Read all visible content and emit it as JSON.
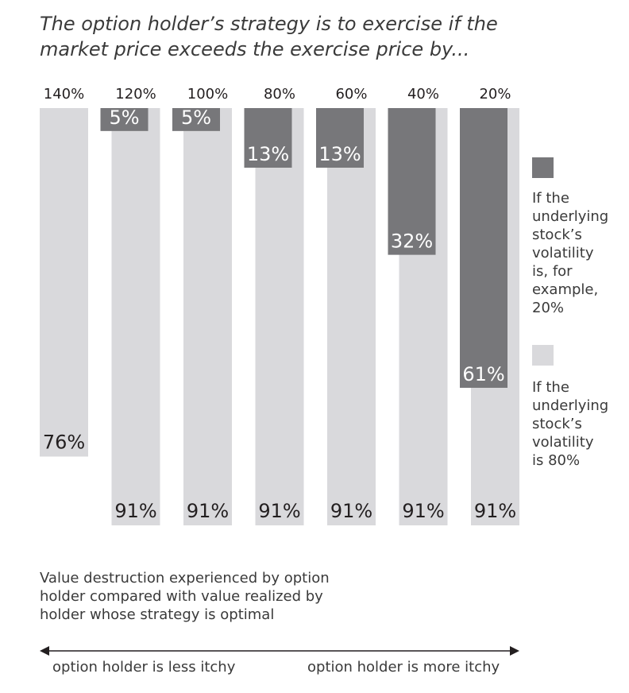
{
  "title": {
    "line1": "The option holder’s strategy is to exercise if the",
    "line2": "market price exceeds the exercise price by..."
  },
  "legend": {
    "dark": {
      "lines": [
        "If the",
        "underlying",
        "stock’s",
        "volatility",
        "is, for",
        "example,",
        "20%"
      ]
    },
    "light": {
      "lines": [
        "If the",
        "underlying",
        "stock’s",
        "volatility",
        "is 80%"
      ]
    }
  },
  "caption": {
    "lines": [
      "Value destruction experienced by option",
      "holder compared with value realized by",
      "holder whose strategy is optimal"
    ]
  },
  "axis": {
    "left_label": "option holder is less itchy",
    "right_label": "option holder is more itchy"
  },
  "chart_data": {
    "type": "bar",
    "title": "The option holder’s strategy is to exercise if the market price exceeds the exercise price by...",
    "categories": [
      "140%",
      "120%",
      "100%",
      "80%",
      "60%",
      "40%",
      "20%"
    ],
    "series": [
      {
        "name": "If the underlying stock’s volatility is 80%",
        "color": "#d9d9dc",
        "values": [
          76,
          91,
          91,
          91,
          91,
          91,
          91
        ],
        "labels": [
          "76%",
          "91%",
          "91%",
          "91%",
          "91%",
          "91%",
          "91%"
        ]
      },
      {
        "name": "If the underlying stock’s volatility is, for example, 20%",
        "color": "#77777a",
        "values": [
          null,
          5,
          5,
          13,
          13,
          32,
          61
        ],
        "labels": [
          "",
          "5%",
          "5%",
          "13%",
          "13%",
          "32%",
          "61%"
        ]
      }
    ],
    "ylabel": "Value destruction experienced by option holder compared with value realized by holder whose strategy is optimal",
    "ylim": [
      0,
      100
    ],
    "orientation": "bars hang from top",
    "grid": false,
    "legend_position": "right"
  }
}
